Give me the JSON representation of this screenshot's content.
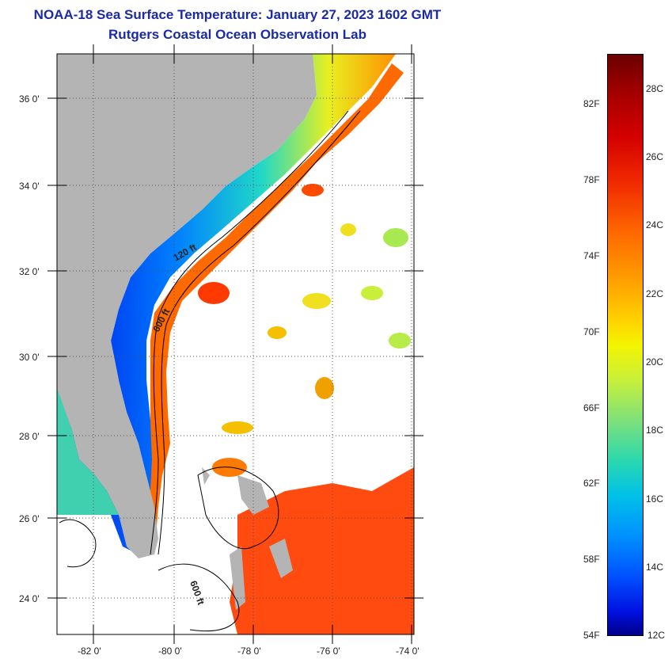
{
  "title": {
    "line1": "NOAA-18 Sea Surface Temperature:  January 27, 2023 1602 GMT",
    "line2": "Rutgers Coastal Ocean Observation Lab"
  },
  "map": {
    "lat_labels": [
      "36 0'",
      "34 0'",
      "32 0'",
      "30 0'",
      "28 0'",
      "26 0'",
      "24 0'"
    ],
    "lon_labels": [
      "-82 0'",
      "-80 0'",
      "-78 0'",
      "-76 0'",
      "-74 0'"
    ],
    "contour_labels": [
      "120 ft",
      "600 ft",
      "600 ft"
    ],
    "colors": {
      "land": "#b4b4b4",
      "no_data": "#ffffff",
      "contour": "#000000",
      "title": "#1a2aa8"
    }
  },
  "colorbar": {
    "fahrenheit_labels": [
      "82F",
      "78F",
      "74F",
      "70F",
      "66F",
      "62F",
      "58F",
      "54F"
    ],
    "celsius_labels": [
      "28C",
      "26C",
      "24C",
      "22C",
      "20C",
      "18C",
      "16C",
      "14C",
      "12C"
    ]
  }
}
